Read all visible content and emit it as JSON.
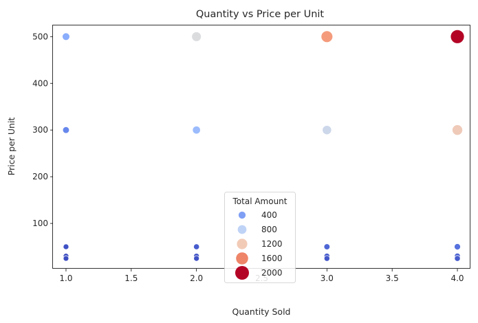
{
  "chart_data": {
    "type": "scatter",
    "title": "Quantity vs Price per Unit",
    "xlabel": "Quantity Sold",
    "ylabel": "Price per Unit",
    "xlim": [
      0.9,
      4.1
    ],
    "ylim": [
      3,
      524
    ],
    "xticks": [
      1.0,
      1.5,
      2.0,
      2.5,
      3.0,
      3.5,
      4.0
    ],
    "xtick_labels": [
      "1.0",
      "1.5",
      "2.0",
      "2.5",
      "3.0",
      "3.5",
      "4.0"
    ],
    "yticks": [
      100,
      200,
      300,
      400,
      500
    ],
    "ytick_labels": [
      "100",
      "200",
      "300",
      "400",
      "500"
    ],
    "grid": false,
    "hue_variable": "Total Amount",
    "size_variable": "Total Amount",
    "colormap": "coolwarm",
    "hue_range": [
      25,
      2000
    ],
    "points": [
      {
        "x": 1,
        "y": 500
      },
      {
        "x": 1,
        "y": 300
      },
      {
        "x": 1,
        "y": 50
      },
      {
        "x": 1,
        "y": 30
      },
      {
        "x": 1,
        "y": 25
      },
      {
        "x": 2,
        "y": 500
      },
      {
        "x": 2,
        "y": 300
      },
      {
        "x": 2,
        "y": 50
      },
      {
        "x": 2,
        "y": 30
      },
      {
        "x": 2,
        "y": 25
      },
      {
        "x": 3,
        "y": 500
      },
      {
        "x": 3,
        "y": 300
      },
      {
        "x": 3,
        "y": 50
      },
      {
        "x": 3,
        "y": 30
      },
      {
        "x": 3,
        "y": 25
      },
      {
        "x": 4,
        "y": 500
      },
      {
        "x": 4,
        "y": 300
      },
      {
        "x": 4,
        "y": 50
      },
      {
        "x": 4,
        "y": 30
      },
      {
        "x": 4,
        "y": 25
      }
    ],
    "legend": {
      "title": "Total Amount",
      "placement": "lower center",
      "entries": [
        {
          "label": "400",
          "value": 400,
          "color": "#7f9ff5"
        },
        {
          "label": "800",
          "value": 800,
          "color": "#bfd3f6"
        },
        {
          "label": "1200",
          "value": 1200,
          "color": "#f2cbb7"
        },
        {
          "label": "1600",
          "value": 1600,
          "color": "#ee8468"
        },
        {
          "label": "2000",
          "value": 2000,
          "color": "#b40426"
        }
      ]
    }
  }
}
